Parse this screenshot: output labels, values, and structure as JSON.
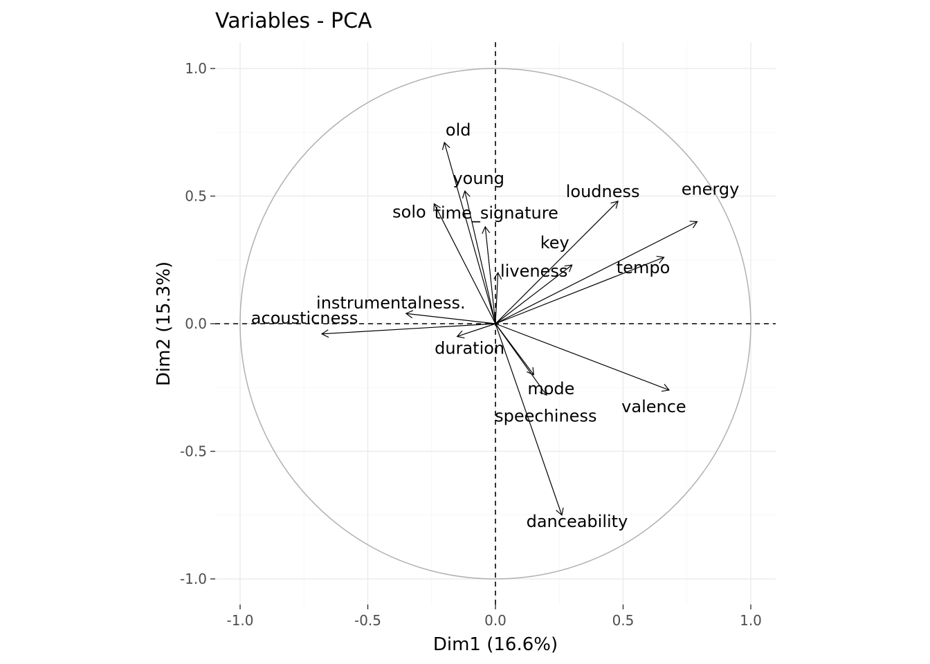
{
  "chart_data": {
    "type": "scatter",
    "title": "Variables - PCA",
    "xlabel": "Dim1 (16.6%)",
    "ylabel": "Dim2 (15.3%)",
    "xlim": [
      -1.0,
      1.0
    ],
    "ylim": [
      -1.0,
      1.0
    ],
    "x_ticks": [
      "-1.0",
      "-0.5",
      "0.0",
      "0.5",
      "1.0"
    ],
    "y_ticks": [
      "-1.0",
      "-0.5",
      "0.0",
      "0.5",
      "1.0"
    ],
    "grid": true,
    "correlation_circle": true,
    "variables": [
      {
        "name": "old",
        "x": -0.2,
        "y": 0.71
      },
      {
        "name": "young",
        "x": -0.12,
        "y": 0.52
      },
      {
        "name": "solo",
        "x": -0.24,
        "y": 0.47
      },
      {
        "name": "time_signature",
        "x": -0.04,
        "y": 0.38
      },
      {
        "name": "loudness",
        "x": 0.48,
        "y": 0.48
      },
      {
        "name": "energy",
        "x": 0.79,
        "y": 0.4
      },
      {
        "name": "liveness",
        "x": 0.01,
        "y": 0.2
      },
      {
        "name": "tempo",
        "x": 0.66,
        "y": 0.26
      },
      {
        "name": "key",
        "x": 0.3,
        "y": 0.23
      },
      {
        "name": "instrumentalness.",
        "x": -0.35,
        "y": 0.04
      },
      {
        "name": "acousticness",
        "x": -0.68,
        "y": -0.04
      },
      {
        "name": "duration",
        "x": -0.15,
        "y": -0.05
      },
      {
        "name": "mode",
        "x": 0.15,
        "y": -0.2
      },
      {
        "name": "speechiness",
        "x": 0.2,
        "y": -0.28
      },
      {
        "name": "valence",
        "x": 0.68,
        "y": -0.26
      },
      {
        "name": "danceability",
        "x": 0.26,
        "y": -0.75
      }
    ]
  }
}
